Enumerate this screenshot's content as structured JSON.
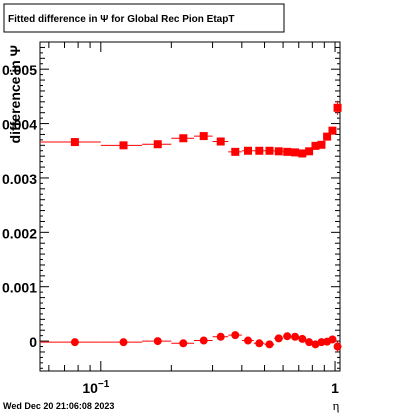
{
  "chart_data": {
    "type": "scatter",
    "title": "Fitted difference in  Ψ  for Global Rec Pion EtapT",
    "xlabel": "η",
    "ylabel": "difference in  Ψ",
    "x_scale": "log",
    "xlim": [
      0.055,
      1.05
    ],
    "ylim": [
      -0.00055,
      0.0055
    ],
    "x_tick_labels": [
      {
        "value": 0.1,
        "base": "10",
        "exp": "−1"
      },
      {
        "value": 1,
        "base": "1",
        "exp": ""
      }
    ],
    "y_ticks": [
      0,
      0.001,
      0.002,
      0.003,
      0.004,
      0.005
    ],
    "y_tick_labels": [
      "0",
      "0.001",
      "0.002",
      "0.003",
      "0.004",
      "0.005"
    ],
    "footer": "Wed Dec 20 21:06:08 2023",
    "series": [
      {
        "marker": "square",
        "color": "#ff0000",
        "bin_edges": [
          0.055,
          0.1,
          0.15,
          0.2,
          0.25,
          0.3,
          0.35,
          0.4,
          0.45,
          0.5,
          0.55,
          0.6,
          0.65,
          0.7,
          0.75,
          0.8,
          0.85,
          0.9,
          0.95,
          1.0,
          1.05
        ],
        "x": [
          0.0775,
          0.125,
          0.175,
          0.225,
          0.275,
          0.325,
          0.375,
          0.425,
          0.475,
          0.525,
          0.575,
          0.625,
          0.675,
          0.725,
          0.775,
          0.825,
          0.875,
          0.925,
          0.975,
          1.025
        ],
        "y": [
          0.00366,
          0.0036,
          0.00362,
          0.00373,
          0.00377,
          0.00367,
          0.00348,
          0.0035,
          0.0035,
          0.0035,
          0.00349,
          0.00348,
          0.00347,
          0.00345,
          0.00349,
          0.00359,
          0.00361,
          0.00376,
          0.00387,
          0.00429
        ],
        "err": [
          1e-05,
          1e-05,
          1e-05,
          1e-05,
          2e-05,
          2e-05,
          2e-05,
          2e-05,
          2e-05,
          2e-05,
          2e-05,
          2e-05,
          2e-05,
          2e-05,
          2e-05,
          2e-05,
          2e-05,
          3e-05,
          4e-05,
          0.00013
        ]
      },
      {
        "marker": "circle",
        "color": "#ff0000",
        "bin_edges": [
          0.055,
          0.1,
          0.15,
          0.2,
          0.25,
          0.3,
          0.35,
          0.4,
          0.45,
          0.5,
          0.55,
          0.6,
          0.65,
          0.7,
          0.75,
          0.8,
          0.85,
          0.9,
          0.95,
          1.0,
          1.05
        ],
        "x": [
          0.0775,
          0.125,
          0.175,
          0.225,
          0.275,
          0.325,
          0.375,
          0.425,
          0.475,
          0.525,
          0.575,
          0.625,
          0.675,
          0.725,
          0.775,
          0.825,
          0.875,
          0.925,
          0.975,
          1.025
        ],
        "y": [
          -2e-05,
          -2e-05,
          0.0,
          -4e-05,
          1e-05,
          8e-05,
          0.00011,
          1e-05,
          -4e-05,
          -6e-05,
          5e-05,
          9e-05,
          8e-05,
          4e-05,
          -2e-05,
          -6e-05,
          -2e-05,
          -1e-05,
          3e-05,
          -0.0001
        ],
        "err": [
          1e-05,
          1e-05,
          1e-05,
          1e-05,
          2e-05,
          2e-05,
          2e-05,
          2e-05,
          2e-05,
          2e-05,
          2e-05,
          2e-05,
          2e-05,
          2e-05,
          2e-05,
          2e-05,
          2e-05,
          3e-05,
          4e-05,
          0.0001
        ]
      }
    ]
  }
}
